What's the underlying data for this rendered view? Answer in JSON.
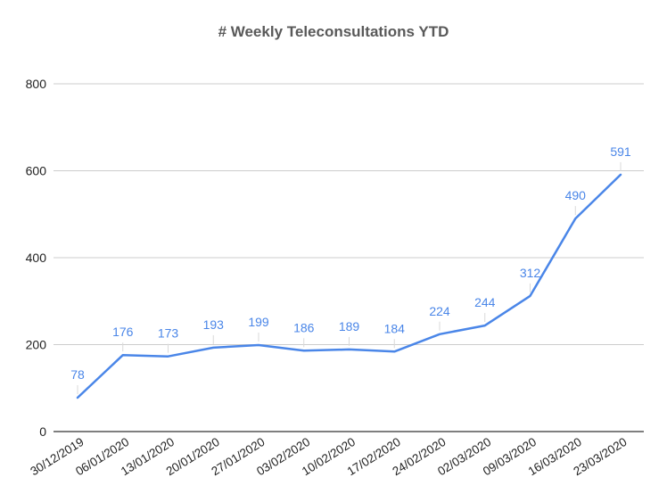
{
  "chart_data": {
    "type": "line",
    "title": "# Weekly Teleconsultations YTD",
    "xlabel": "",
    "ylabel": "",
    "categories": [
      "30/12/2019",
      "06/01/2020",
      "13/01/2020",
      "20/01/2020",
      "27/01/2020",
      "03/02/2020",
      "10/02/2020",
      "17/02/2020",
      "24/02/2020",
      "02/03/2020",
      "09/03/2020",
      "16/03/2020",
      "23/03/2020"
    ],
    "series": [
      {
        "values": [
          78,
          176,
          173,
          193,
          199,
          186,
          189,
          184,
          224,
          244,
          312,
          490,
          591
        ]
      }
    ],
    "ylim": [
      0,
      800
    ],
    "yticks": [
      0,
      200,
      400,
      600,
      800
    ],
    "grid": true,
    "legend": "none",
    "line_color": "#4a86e8",
    "data_labels": true
  }
}
